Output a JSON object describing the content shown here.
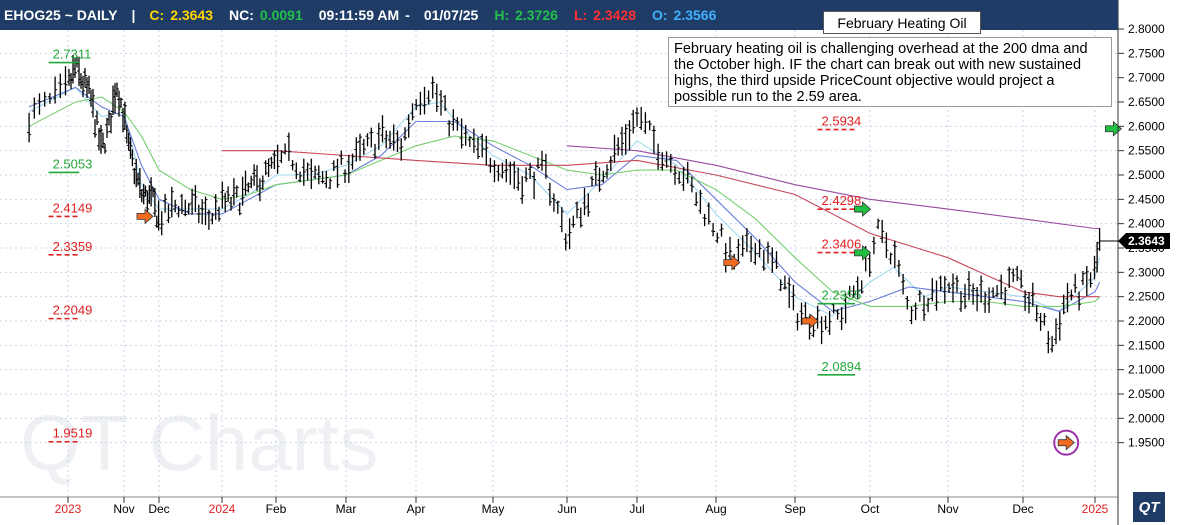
{
  "header": {
    "symbol": "EHOG25 ~ DAILY",
    "sep": "|",
    "close_label": "C:",
    "close_value": "2.3643",
    "nc_label": "NC:",
    "nc_value": "0.0091",
    "time": "09:11:59 AM",
    "dash": "-",
    "date": "01/07/25",
    "high_label": "H:",
    "high_value": "2.3726",
    "low_label": "L:",
    "low_value": "2.3428",
    "open_label": "O:",
    "open_value": "2.3566",
    "colors": {
      "close": "#ffd400",
      "nc": "#22c04a",
      "high": "#22c04a",
      "low": "#ff3030",
      "open": "#40b0ff",
      "bg": "#1e3c66"
    }
  },
  "title_box": "February Heating Oil",
  "note": "February heating oil is challenging overhead at the 200 dma and the October high.  IF the chart can break out with new sustained highs, the third upside PriceCount objective would project a possible run to the 2.59 area.",
  "watermark": "QT Charts",
  "logo": "QT",
  "chart_data": {
    "type": "ohlc",
    "y_axis": {
      "min": 1.9,
      "max": 2.8,
      "side": "right",
      "ticks": [
        "2.8000",
        "2.7500",
        "2.7000",
        "2.6500",
        "2.6000",
        "2.5500",
        "2.5000",
        "2.4500",
        "2.4000",
        "2.3500",
        "2.3000",
        "2.2500",
        "2.2000",
        "2.1500",
        "2.1000",
        "2.0500",
        "2.0000",
        "1.9500"
      ]
    },
    "x_axis": {
      "labels": [
        {
          "label": "2023",
          "t": -1.5,
          "year": true
        },
        {
          "label": "Nov",
          "t": 0,
          "year": false
        },
        {
          "label": "Dec",
          "t": 1,
          "year": false
        },
        {
          "label": "2024",
          "t": 2,
          "year": true
        },
        {
          "label": "Feb",
          "t": 3,
          "year": false
        },
        {
          "label": "Mar",
          "t": 4,
          "year": false
        },
        {
          "label": "Apr",
          "t": 5,
          "year": false
        },
        {
          "label": "May",
          "t": 6,
          "year": false
        },
        {
          "label": "Jun",
          "t": 7,
          "year": false
        },
        {
          "label": "Jul",
          "t": 8,
          "year": false
        },
        {
          "label": "Aug",
          "t": 9,
          "year": false
        },
        {
          "label": "Sep",
          "t": 10,
          "year": false
        },
        {
          "label": "Oct",
          "t": 11,
          "year": false
        },
        {
          "label": "Nov",
          "t": 12,
          "year": false
        },
        {
          "label": "Dec",
          "t": 13,
          "year": false
        },
        {
          "label": "2025",
          "t": 14,
          "year": true
        }
      ]
    },
    "price_anchors": [
      [
        -1.9,
        2.62
      ],
      [
        -1.6,
        2.66
      ],
      [
        -1.3,
        2.72
      ],
      [
        -0.9,
        2.66
      ],
      [
        -0.6,
        2.55
      ],
      [
        -0.4,
        2.6
      ],
      [
        -0.2,
        2.69
      ],
      [
        0,
        2.62
      ],
      [
        0.1,
        2.56
      ],
      [
        0.5,
        2.46
      ],
      [
        0.8,
        2.45
      ],
      [
        1.0,
        2.41
      ],
      [
        1.3,
        2.44
      ],
      [
        1.6,
        2.43
      ],
      [
        1.8,
        2.41
      ],
      [
        2.0,
        2.44
      ],
      [
        2.3,
        2.45
      ],
      [
        2.6,
        2.48
      ],
      [
        2.9,
        2.51
      ],
      [
        3.2,
        2.54
      ],
      [
        3.5,
        2.49
      ],
      [
        3.8,
        2.5
      ],
      [
        4.1,
        2.53
      ],
      [
        4.5,
        2.58
      ],
      [
        4.8,
        2.56
      ],
      [
        5.0,
        2.66
      ],
      [
        5.2,
        2.68
      ],
      [
        5.4,
        2.62
      ],
      [
        5.7,
        2.56
      ],
      [
        6.0,
        2.53
      ],
      [
        6.4,
        2.49
      ],
      [
        6.7,
        2.51
      ],
      [
        7.0,
        2.37
      ],
      [
        7.2,
        2.43
      ],
      [
        7.5,
        2.51
      ],
      [
        7.8,
        2.57
      ],
      [
        8.0,
        2.62
      ],
      [
        8.3,
        2.55
      ],
      [
        8.6,
        2.5
      ],
      [
        8.8,
        2.44
      ],
      [
        9.0,
        2.39
      ],
      [
        9.2,
        2.32
      ],
      [
        9.5,
        2.36
      ],
      [
        9.8,
        2.3
      ],
      [
        10.0,
        2.22
      ],
      [
        10.3,
        2.2
      ],
      [
        10.6,
        2.21
      ],
      [
        10.9,
        2.29
      ],
      [
        11.1,
        2.38
      ],
      [
        11.3,
        2.34
      ],
      [
        11.5,
        2.22
      ],
      [
        11.7,
        2.25
      ],
      [
        12.0,
        2.28
      ],
      [
        12.3,
        2.25
      ],
      [
        12.6,
        2.26
      ],
      [
        12.9,
        2.28
      ],
      [
        13.2,
        2.22
      ],
      [
        13.4,
        2.15
      ],
      [
        13.6,
        2.25
      ],
      [
        13.8,
        2.26
      ],
      [
        14.0,
        2.3
      ],
      [
        14.1,
        2.36
      ]
    ],
    "moving_averages": [
      {
        "color": "#a0d8f0",
        "points": [
          [
            -1.9,
            2.63
          ],
          [
            -1.3,
            2.68
          ],
          [
            -0.6,
            2.62
          ],
          [
            0,
            2.63
          ],
          [
            0.5,
            2.48
          ],
          [
            1,
            2.43
          ],
          [
            1.5,
            2.43
          ],
          [
            2,
            2.43
          ],
          [
            2.5,
            2.46
          ],
          [
            3,
            2.5
          ],
          [
            3.5,
            2.5
          ],
          [
            4,
            2.52
          ],
          [
            4.5,
            2.56
          ],
          [
            5,
            2.64
          ],
          [
            5.3,
            2.65
          ],
          [
            5.7,
            2.58
          ],
          [
            6,
            2.54
          ],
          [
            6.5,
            2.5
          ],
          [
            7,
            2.42
          ],
          [
            7.5,
            2.49
          ],
          [
            8,
            2.57
          ],
          [
            8.5,
            2.52
          ],
          [
            9,
            2.42
          ],
          [
            9.5,
            2.34
          ],
          [
            10,
            2.25
          ],
          [
            10.5,
            2.21
          ],
          [
            11,
            2.28
          ],
          [
            11.3,
            2.31
          ],
          [
            11.7,
            2.25
          ],
          [
            12,
            2.27
          ],
          [
            12.5,
            2.26
          ],
          [
            13,
            2.25
          ],
          [
            13.5,
            2.22
          ],
          [
            14,
            2.29
          ],
          [
            14.1,
            2.33
          ]
        ]
      },
      {
        "color": "#6a7fd8",
        "points": [
          [
            -1.9,
            2.64
          ],
          [
            -1.3,
            2.68
          ],
          [
            -0.6,
            2.64
          ],
          [
            0,
            2.62
          ],
          [
            0.5,
            2.52
          ],
          [
            1,
            2.45
          ],
          [
            1.5,
            2.42
          ],
          [
            2,
            2.42
          ],
          [
            2.5,
            2.45
          ],
          [
            3,
            2.48
          ],
          [
            3.5,
            2.49
          ],
          [
            4,
            2.5
          ],
          [
            4.5,
            2.54
          ],
          [
            5,
            2.61
          ],
          [
            5.5,
            2.61
          ],
          [
            6,
            2.56
          ],
          [
            6.5,
            2.52
          ],
          [
            7,
            2.47
          ],
          [
            7.5,
            2.48
          ],
          [
            8,
            2.54
          ],
          [
            8.5,
            2.53
          ],
          [
            9,
            2.45
          ],
          [
            9.5,
            2.37
          ],
          [
            10,
            2.28
          ],
          [
            10.5,
            2.22
          ],
          [
            11,
            2.24
          ],
          [
            11.5,
            2.27
          ],
          [
            12,
            2.26
          ],
          [
            12.5,
            2.25
          ],
          [
            13,
            2.24
          ],
          [
            13.5,
            2.22
          ],
          [
            14,
            2.26
          ],
          [
            14.1,
            2.28
          ]
        ]
      },
      {
        "color": "#78d070",
        "points": [
          [
            -1.9,
            2.6
          ],
          [
            -1.3,
            2.65
          ],
          [
            -0.6,
            2.66
          ],
          [
            0,
            2.63
          ],
          [
            0.5,
            2.58
          ],
          [
            1,
            2.51
          ],
          [
            1.5,
            2.47
          ],
          [
            2,
            2.45
          ],
          [
            2.5,
            2.46
          ],
          [
            3,
            2.48
          ],
          [
            3.5,
            2.49
          ],
          [
            4,
            2.5
          ],
          [
            4.5,
            2.53
          ],
          [
            5,
            2.56
          ],
          [
            5.5,
            2.58
          ],
          [
            6,
            2.57
          ],
          [
            6.5,
            2.54
          ],
          [
            7,
            2.51
          ],
          [
            7.5,
            2.5
          ],
          [
            8,
            2.51
          ],
          [
            8.5,
            2.51
          ],
          [
            9,
            2.47
          ],
          [
            9.5,
            2.41
          ],
          [
            10,
            2.33
          ],
          [
            10.5,
            2.26
          ],
          [
            11,
            2.23
          ],
          [
            11.5,
            2.23
          ],
          [
            12,
            2.24
          ],
          [
            12.5,
            2.24
          ],
          [
            13,
            2.23
          ],
          [
            13.5,
            2.23
          ],
          [
            14,
            2.24
          ],
          [
            14.1,
            2.25
          ]
        ]
      },
      {
        "color": "#c8485a",
        "points": [
          [
            2,
            2.55
          ],
          [
            3,
            2.55
          ],
          [
            4,
            2.54
          ],
          [
            5,
            2.53
          ],
          [
            6,
            2.52
          ],
          [
            7,
            2.52
          ],
          [
            8,
            2.53
          ],
          [
            9,
            2.5
          ],
          [
            10,
            2.46
          ],
          [
            11,
            2.38
          ],
          [
            12,
            2.33
          ],
          [
            13,
            2.26
          ],
          [
            13.5,
            2.25
          ],
          [
            14,
            2.25
          ],
          [
            14.1,
            2.25
          ]
        ]
      },
      {
        "color": "#9a4aa0",
        "points": [
          [
            7,
            2.56
          ],
          [
            8,
            2.55
          ],
          [
            9,
            2.52
          ],
          [
            10,
            2.48
          ],
          [
            11,
            2.45
          ],
          [
            12,
            2.43
          ],
          [
            13,
            2.41
          ],
          [
            14,
            2.39
          ],
          [
            14.1,
            2.39
          ]
        ]
      }
    ],
    "price_levels": [
      {
        "label": "2.7311",
        "value": 2.7311,
        "kind": "solid",
        "color": "#22a838",
        "t0": -1.7,
        "t1": -1.2,
        "label_side": "right",
        "label_value": 2.7311
      },
      {
        "label": "2.5053",
        "value": 2.5053,
        "kind": "solid",
        "color": "#22a838",
        "t0": -1.7,
        "t1": -1.2,
        "label_side": "right",
        "label_value": 2.5053
      },
      {
        "label": "2.4149",
        "value": 2.4149,
        "kind": "dashed",
        "color": "#e02020",
        "t0": -1.7,
        "t1": -1.2,
        "label_side": "right",
        "label_value": 2.4149
      },
      {
        "label": "2.3359",
        "value": 2.3359,
        "kind": "dashed",
        "color": "#e02020",
        "t0": -1.7,
        "t1": -1.2,
        "label_side": "right",
        "label_value": 2.3359
      },
      {
        "label": "2.2049",
        "value": 2.2049,
        "kind": "dashed",
        "color": "#e02020",
        "t0": -1.7,
        "t1": -1.2,
        "label_side": "right",
        "label_value": 2.2049
      },
      {
        "label": "1.9519",
        "value": 1.9519,
        "kind": "dashed",
        "color": "#e02020",
        "t0": -1.7,
        "t1": -1.2,
        "label_side": "right",
        "label_value": 1.9519
      },
      {
        "label": "2.5934",
        "value": 2.5934,
        "kind": "dashed",
        "color": "#e02020",
        "t0": 10.3,
        "t1": 10.8,
        "label_side": "right",
        "label_value": 2.5934
      },
      {
        "label": "2.4298",
        "value": 2.4298,
        "kind": "dashed",
        "color": "#e02020",
        "t0": 10.3,
        "t1": 10.8,
        "label_side": "right",
        "label_value": 2.4298
      },
      {
        "label": "2.3406",
        "value": 2.3406,
        "kind": "dashed",
        "color": "#e02020",
        "t0": 10.3,
        "t1": 10.8,
        "label_side": "right",
        "label_value": 2.3406
      },
      {
        "label": "2.2355",
        "value": 2.2355,
        "kind": "solid",
        "color": "#22a838",
        "t0": 10.3,
        "t1": 10.8,
        "label_side": "right",
        "label_value": 2.2355
      },
      {
        "label": "2.0894",
        "value": 2.0894,
        "kind": "solid",
        "color": "#22a838",
        "t0": 10.3,
        "t1": 10.8,
        "label_side": "right",
        "label_value": 2.0894
      }
    ],
    "signals": [
      {
        "kind": "sell",
        "t": 0.6,
        "value": 2.415,
        "color": "#f06a20"
      },
      {
        "kind": "sell",
        "t": 9.2,
        "value": 2.32,
        "color": "#f06a20"
      },
      {
        "kind": "sell",
        "t": 10.2,
        "value": 2.2,
        "color": "#f06a20"
      },
      {
        "kind": "buy",
        "t": 10.9,
        "value": 2.43,
        "color": "#22c040"
      },
      {
        "kind": "buy",
        "t": 10.9,
        "value": 2.34,
        "color": "#22c040"
      },
      {
        "kind": "buy",
        "t": 14.4,
        "value": 2.595,
        "color": "#22c040"
      },
      {
        "kind": "sell",
        "t": 13.6,
        "value": 1.95,
        "color": "#f06a20",
        "circled": true,
        "circle_color": "#9b2fa8"
      }
    ],
    "last_price": {
      "label": "2.3643",
      "value": 2.3643
    },
    "grid": true
  }
}
